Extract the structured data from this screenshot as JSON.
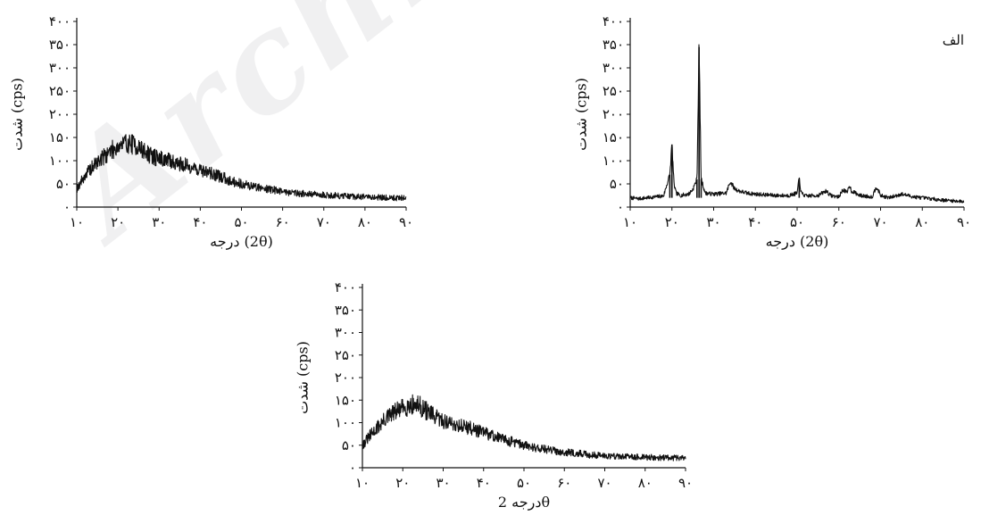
{
  "chart_data": [
    {
      "type": "line",
      "panel_label": "الف",
      "xlabel": "درجه (2θ)",
      "ylabel": "شدت (cps)",
      "xlim": [
        10,
        90
      ],
      "ylim": [
        0,
        400
      ],
      "x_ticks": [
        "١٠",
        "٢٠",
        "٣٠",
        "۴٠",
        "۵٠",
        "۶٠",
        "٧٠",
        "٨٠",
        "٩٠"
      ],
      "y_ticks": [
        "٠",
        "۵٠",
        "١٠٠",
        "١۵٠",
        "٢٠٠",
        "٢۵٠",
        "٣٠٠",
        "٣۵٠",
        "۴٠٠"
      ],
      "series": [
        {
          "x": [
            10,
            12,
            14,
            16,
            18,
            19.5,
            20,
            20.5,
            21,
            22,
            24,
            25,
            26,
            26.5,
            27,
            27.5,
            28,
            30,
            33,
            34,
            35,
            36,
            38,
            40,
            45,
            48,
            50,
            50.5,
            51,
            52,
            55,
            57,
            58,
            60,
            61,
            62,
            62.5,
            63,
            65,
            68,
            69,
            70,
            72,
            75,
            78,
            80,
            85,
            90
          ],
          "y": [
            20,
            18,
            20,
            22,
            24,
            70,
            135,
            50,
            30,
            25,
            28,
            38,
            60,
            345,
            60,
            45,
            30,
            28,
            30,
            55,
            40,
            35,
            30,
            28,
            25,
            25,
            30,
            62,
            30,
            24,
            25,
            35,
            25,
            22,
            38,
            30,
            48,
            35,
            25,
            22,
            45,
            25,
            20,
            28,
            22,
            20,
            15,
            12
          ]
        }
      ]
    },
    {
      "type": "line",
      "xlabel": "درجه (2θ)",
      "ylabel": "شدت (cps)",
      "xlim": [
        10,
        90
      ],
      "ylim": [
        0,
        400
      ],
      "x_ticks": [
        "١٠",
        "٢٠",
        "٣٠",
        "۴٠",
        "۵٠",
        "۶٠",
        "٧٠",
        "٨٠",
        "٩٠"
      ],
      "y_ticks": [
        "٠",
        "۵٠",
        "١٠٠",
        "١۵٠",
        "٢٠٠",
        "٢۵٠",
        "٣٠٠",
        "٣۵٠",
        "۴٠٠"
      ],
      "series": [
        {
          "x": [
            10,
            12,
            14,
            16,
            18,
            20,
            22,
            24,
            26,
            28,
            30,
            32,
            34,
            36,
            38,
            40,
            42,
            44,
            46,
            48,
            50,
            52,
            54,
            56,
            58,
            60,
            62,
            64,
            66,
            68,
            70,
            72,
            74,
            76,
            78,
            80,
            82,
            84,
            86,
            88,
            90
          ],
          "y": [
            40,
            68,
            88,
            105,
            120,
            131,
            138,
            135,
            122,
            110,
            105,
            100,
            96,
            91,
            86,
            80,
            75,
            68,
            62,
            55,
            50,
            46,
            43,
            40,
            37,
            34,
            32,
            30,
            28,
            27,
            26,
            25,
            24,
            23,
            22,
            22,
            21,
            21,
            20,
            20,
            20
          ]
        }
      ]
    },
    {
      "type": "line",
      "xlabel": "درجه 2θ",
      "ylabel": "شدت (cps)",
      "xlim": [
        10,
        90
      ],
      "ylim": [
        0,
        400
      ],
      "x_ticks": [
        "١٠",
        "٢٠",
        "٣٠",
        "۴٠",
        "۵٠",
        "۶٠",
        "٧٠",
        "٨٠",
        "٩٠"
      ],
      "y_ticks": [
        "٠",
        "۵٠",
        "١٠٠",
        "١۵٠",
        "٢٠٠",
        "٢۵٠",
        "٣٠٠",
        "٣۵٠",
        "۴٠٠"
      ],
      "series": [
        {
          "x": [
            10,
            12,
            14,
            16,
            18,
            20,
            22,
            24,
            26,
            28,
            30,
            32,
            34,
            36,
            38,
            40,
            42,
            44,
            46,
            48,
            50,
            52,
            54,
            56,
            58,
            60,
            62,
            64,
            66,
            68,
            70,
            72,
            74,
            76,
            78,
            80,
            82,
            84,
            86,
            88,
            90
          ],
          "y": [
            50,
            72,
            92,
            110,
            123,
            132,
            140,
            138,
            125,
            112,
            104,
            98,
            94,
            90,
            84,
            78,
            72,
            66,
            60,
            55,
            50,
            46,
            43,
            40,
            37,
            35,
            33,
            31,
            29,
            28,
            27,
            26,
            25,
            24,
            24,
            23,
            23,
            22,
            22,
            22,
            22
          ]
        }
      ]
    }
  ]
}
